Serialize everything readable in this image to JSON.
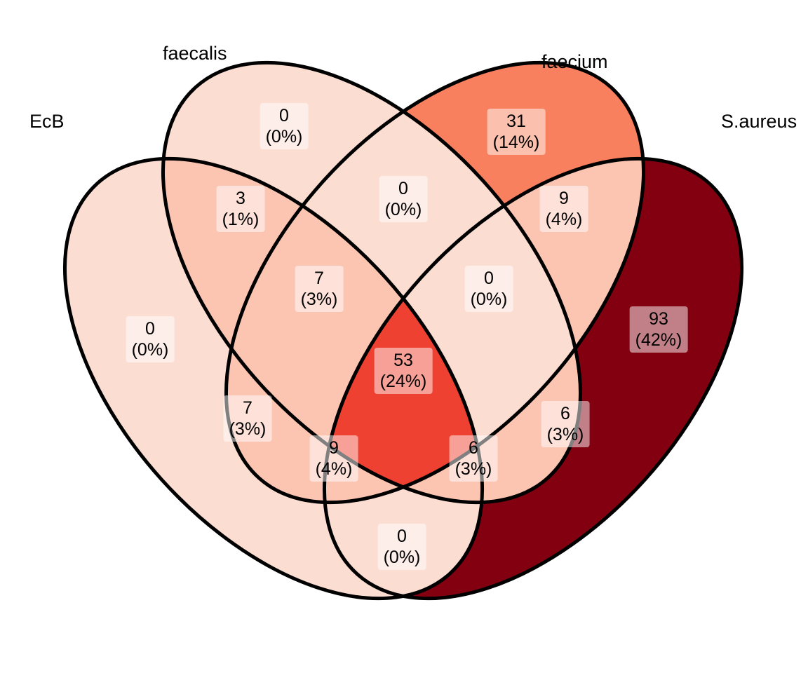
{
  "sets": [
    {
      "id": "ecb",
      "name": "EcB"
    },
    {
      "id": "faecalis",
      "name": "faecalis"
    },
    {
      "id": "faecium",
      "name": "faecium"
    },
    {
      "id": "saureus",
      "name": "S.aureus"
    }
  ],
  "regions": [
    {
      "id": "ecb_only",
      "sets": [
        "EcB"
      ],
      "count": "0",
      "percent": "(0%)"
    },
    {
      "id": "faecalis_only",
      "sets": [
        "faecalis"
      ],
      "count": "0",
      "percent": "(0%)"
    },
    {
      "id": "faecium_only",
      "sets": [
        "faecium"
      ],
      "count": "31",
      "percent": "(14%)"
    },
    {
      "id": "saureus_only",
      "sets": [
        "S.aureus"
      ],
      "count": "93",
      "percent": "(42%)"
    },
    {
      "id": "ecb_faecalis",
      "sets": [
        "EcB",
        "faecalis"
      ],
      "count": "3",
      "percent": "(1%)"
    },
    {
      "id": "faecalis_faecium",
      "sets": [
        "faecalis",
        "faecium"
      ],
      "count": "0",
      "percent": "(0%)"
    },
    {
      "id": "faecium_saureus",
      "sets": [
        "faecium",
        "S.aureus"
      ],
      "count": "9",
      "percent": "(4%)"
    },
    {
      "id": "ecb_faecalis_faecium",
      "sets": [
        "EcB",
        "faecalis",
        "faecium"
      ],
      "count": "7",
      "percent": "(3%)"
    },
    {
      "id": "faecalis_faecium_saureus",
      "sets": [
        "faecalis",
        "faecium",
        "S.aureus"
      ],
      "count": "0",
      "percent": "(0%)"
    },
    {
      "id": "all_four",
      "sets": [
        "EcB",
        "faecalis",
        "faecium",
        "S.aureus"
      ],
      "count": "53",
      "percent": "(24%)"
    },
    {
      "id": "ecb_faecium",
      "sets": [
        "EcB",
        "faecium"
      ],
      "count": "7",
      "percent": "(3%)"
    },
    {
      "id": "faecalis_saureus",
      "sets": [
        "faecalis",
        "S.aureus"
      ],
      "count": "6",
      "percent": "(3%)"
    },
    {
      "id": "ecb_faecium_saureus",
      "sets": [
        "EcB",
        "faecium",
        "S.aureus"
      ],
      "count": "9",
      "percent": "(4%)"
    },
    {
      "id": "ecb_faecalis_saureus",
      "sets": [
        "EcB",
        "faecalis",
        "S.aureus"
      ],
      "count": "6",
      "percent": "(3%)"
    },
    {
      "id": "ecb_saureus",
      "sets": [
        "EcB",
        "S.aureus"
      ],
      "count": "0",
      "percent": "(0%)"
    }
  ],
  "colors": {
    "outline": "#000000",
    "fill_lowest": "#FCDDD2",
    "fill_low": "#FCC5B2",
    "fill_faecium_only": "#F9805F",
    "fill_all_four": "#EF4131",
    "fill_saureus_only": "#82000F",
    "label_box": "#FFFFFF"
  }
}
